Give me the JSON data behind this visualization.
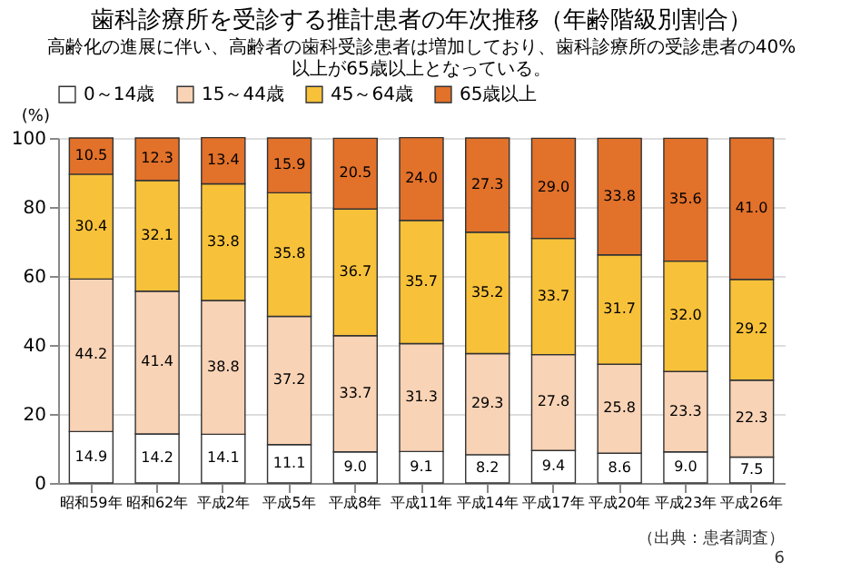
{
  "chart_data": {
    "type": "bar",
    "stacked": true,
    "title": "歯科診療所を受診する推計患者の年次推移（年齢階級別割合）",
    "subtitle": "高齢化の進展に伴い、高齢者の歯科受診患者は増加しており、歯科診療所の受診患者の40%以上が65歳以上となっている。",
    "ylabel": "(%)",
    "categories": [
      "昭和59年",
      "昭和62年",
      "平成2年",
      "平成5年",
      "平成8年",
      "平成11年",
      "平成14年",
      "平成17年",
      "平成20年",
      "平成23年",
      "平成26年"
    ],
    "series": [
      {
        "name": "0～14歳",
        "color": "#ffffff",
        "values": [
          14.9,
          14.2,
          14.1,
          11.1,
          9.0,
          9.1,
          8.2,
          9.4,
          8.6,
          9.0,
          7.5
        ],
        "value_labels": [
          "14.9",
          "14.2",
          "14.1",
          "11.1",
          "9.0",
          "9.1",
          "8.2",
          "9.4",
          "8.6",
          "9.0",
          "7.5"
        ]
      },
      {
        "name": "15～44歳",
        "color": "#f9d3b6",
        "values": [
          44.2,
          41.4,
          38.8,
          37.2,
          33.7,
          31.3,
          29.3,
          27.8,
          25.8,
          23.3,
          22.3
        ],
        "value_labels": [
          "44.2",
          "41.4",
          "38.8",
          "37.2",
          "33.7",
          "31.3",
          "29.3",
          "27.8",
          "25.8",
          "23.3",
          "22.3"
        ]
      },
      {
        "name": "45～64歳",
        "color": "#f7c13a",
        "values": [
          30.4,
          32.1,
          33.8,
          35.8,
          36.7,
          35.7,
          35.2,
          33.7,
          31.7,
          32.0,
          29.2
        ],
        "value_labels": [
          "30.4",
          "32.1",
          "33.8",
          "35.8",
          "36.7",
          "35.7",
          "35.2",
          "33.7",
          "31.7",
          "32.0",
          "29.2"
        ]
      },
      {
        "name": "65歳以上",
        "color": "#e2712a",
        "values": [
          10.5,
          12.3,
          13.4,
          15.9,
          20.5,
          24.0,
          27.3,
          29.0,
          33.8,
          35.6,
          41.0
        ],
        "value_labels": [
          "10.5",
          "12.3",
          "13.4",
          "15.9",
          "20.5",
          "24.0",
          "27.3",
          "29.0",
          "33.8",
          "35.6",
          "41.0"
        ]
      }
    ],
    "ylim": [
      0,
      100
    ],
    "yticks": [
      0,
      20,
      40,
      60,
      80,
      100
    ],
    "grid": "y",
    "legend": "top",
    "annotations": [
      "（出典：患者調査）",
      "6"
    ]
  }
}
